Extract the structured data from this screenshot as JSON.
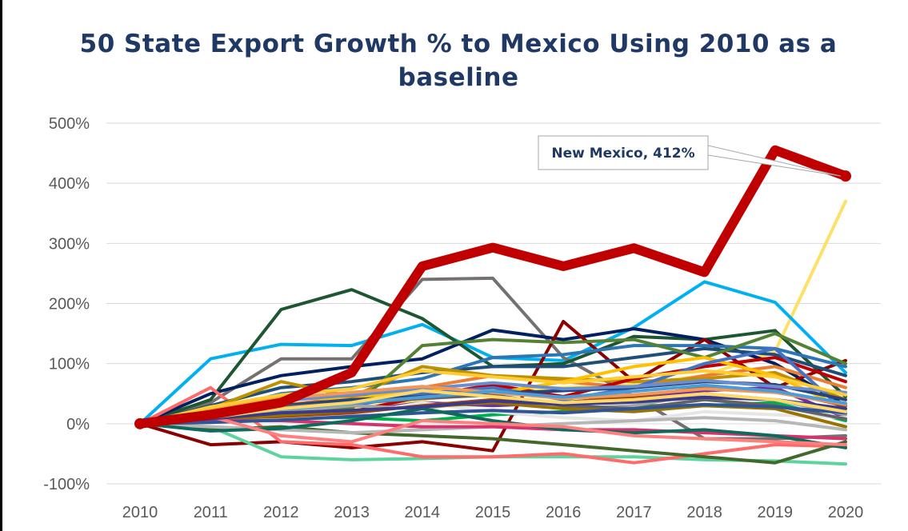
{
  "chart_data": {
    "type": "line",
    "title": "50 State Export Growth % to Mexico Using 2010 as a baseline",
    "xlabel": "",
    "ylabel": "",
    "ylim": [
      -100,
      500
    ],
    "yticks": [
      -100,
      0,
      100,
      200,
      300,
      400,
      500
    ],
    "ytick_labels": [
      "-100%",
      "0%",
      "100%",
      "200%",
      "300%",
      "400%",
      "500%"
    ],
    "x": [
      "2010",
      "2011",
      "2012",
      "2013",
      "2014",
      "2015",
      "2016",
      "2017",
      "2018",
      "2019",
      "2020"
    ],
    "grid": "horizontal",
    "annotation": {
      "text": "New Mexico, 412%",
      "x": "2020",
      "y": 412
    },
    "highlight_series": {
      "name": "New Mexico",
      "color": "#c00000",
      "values": [
        0,
        15,
        35,
        85,
        262,
        293,
        262,
        292,
        252,
        455,
        412
      ]
    },
    "series": [
      {
        "color": "#ffe066",
        "values": [
          0,
          5,
          15,
          25,
          40,
          55,
          60,
          65,
          80,
          120,
          370
        ]
      },
      {
        "color": "#00b0f0",
        "values": [
          0,
          108,
          132,
          130,
          165,
          110,
          105,
          160,
          236,
          202,
          85
        ]
      },
      {
        "color": "#767171",
        "values": [
          0,
          35,
          108,
          108,
          240,
          242,
          110,
          45,
          -25,
          -25,
          -20
        ]
      },
      {
        "color": "#1e5631",
        "values": [
          0,
          40,
          190,
          223,
          175,
          95,
          100,
          145,
          140,
          155,
          45
        ]
      },
      {
        "color": "#002060",
        "values": [
          0,
          50,
          80,
          95,
          108,
          156,
          140,
          158,
          140,
          100,
          30
        ]
      },
      {
        "color": "#8b0000",
        "values": [
          0,
          -35,
          -30,
          -40,
          -30,
          -45,
          170,
          70,
          140,
          60,
          105
        ]
      },
      {
        "color": "#5dd39e",
        "values": [
          0,
          -5,
          -55,
          -60,
          -58,
          -55,
          -55,
          -55,
          -60,
          -62,
          -67
        ]
      },
      {
        "color": "#ff6b6b",
        "values": [
          0,
          60,
          -30,
          -35,
          -55,
          -55,
          -50,
          -65,
          -50,
          -35,
          -38
        ]
      },
      {
        "color": "#1f4e79",
        "values": [
          0,
          30,
          60,
          70,
          85,
          95,
          95,
          110,
          125,
          115,
          80
        ]
      },
      {
        "color": "#2e75b6",
        "values": [
          0,
          20,
          50,
          60,
          75,
          110,
          115,
          130,
          130,
          125,
          95
        ]
      },
      {
        "color": "#ed7d31",
        "values": [
          0,
          15,
          30,
          45,
          60,
          80,
          70,
          60,
          80,
          95,
          60
        ]
      },
      {
        "color": "#bf9000",
        "values": [
          0,
          25,
          70,
          45,
          95,
          80,
          75,
          70,
          75,
          85,
          40
        ]
      },
      {
        "color": "#548235",
        "values": [
          0,
          10,
          20,
          25,
          130,
          140,
          135,
          140,
          110,
          150,
          100
        ]
      },
      {
        "color": "#c00000",
        "values": [
          0,
          5,
          15,
          20,
          45,
          65,
          45,
          75,
          95,
          110,
          70
        ]
      },
      {
        "color": "#ffc000",
        "values": [
          0,
          25,
          45,
          40,
          60,
          50,
          70,
          95,
          110,
          80,
          25
        ]
      },
      {
        "color": "#4472c4",
        "values": [
          0,
          15,
          25,
          30,
          50,
          60,
          40,
          60,
          100,
          125,
          20
        ]
      },
      {
        "color": "#7030a0",
        "values": [
          0,
          10,
          15,
          20,
          35,
          30,
          35,
          45,
          55,
          60,
          10
        ]
      },
      {
        "color": "#00b050",
        "values": [
          0,
          5,
          10,
          10,
          5,
          15,
          20,
          30,
          30,
          35,
          5
        ]
      },
      {
        "color": "#a5a5a5",
        "values": [
          0,
          10,
          20,
          30,
          25,
          40,
          25,
          30,
          50,
          40,
          15
        ]
      },
      {
        "color": "#e7e6e6",
        "values": [
          0,
          5,
          10,
          15,
          35,
          20,
          10,
          5,
          20,
          15,
          10
        ]
      },
      {
        "color": "#9e480e",
        "values": [
          0,
          8,
          12,
          18,
          30,
          40,
          35,
          45,
          60,
          55,
          30
        ]
      },
      {
        "color": "#264478",
        "values": [
          0,
          20,
          30,
          40,
          45,
          50,
          55,
          60,
          70,
          65,
          40
        ]
      },
      {
        "color": "#636363",
        "values": [
          0,
          12,
          28,
          34,
          42,
          48,
          30,
          25,
          40,
          30,
          8
        ]
      },
      {
        "color": "#997300",
        "values": [
          0,
          6,
          14,
          22,
          28,
          35,
          25,
          20,
          30,
          25,
          -5
        ]
      },
      {
        "color": "#43682b",
        "values": [
          0,
          -10,
          -5,
          -15,
          -20,
          -25,
          -35,
          -45,
          -55,
          -65,
          -30
        ]
      },
      {
        "color": "#698ed0",
        "values": [
          0,
          18,
          38,
          48,
          58,
          68,
          58,
          62,
          72,
          62,
          52
        ]
      },
      {
        "color": "#f1975a",
        "values": [
          0,
          22,
          42,
          52,
          62,
          52,
          42,
          48,
          58,
          52,
          32
        ]
      },
      {
        "color": "#b7b7b7",
        "values": [
          0,
          -5,
          -10,
          -15,
          -10,
          -5,
          0,
          5,
          10,
          5,
          -10
        ]
      },
      {
        "color": "#ffcd33",
        "values": [
          0,
          28,
          48,
          58,
          88,
          78,
          68,
          78,
          88,
          78,
          48
        ]
      },
      {
        "color": "#4a9dd9",
        "values": [
          0,
          14,
          24,
          34,
          44,
          54,
          44,
          54,
          64,
          54,
          34
        ]
      },
      {
        "color": "#d6336c",
        "values": [
          0,
          5,
          5,
          0,
          -5,
          -5,
          -10,
          -10,
          -15,
          -20,
          -25
        ]
      },
      {
        "color": "#2f5597",
        "values": [
          0,
          2,
          6,
          12,
          18,
          22,
          18,
          25,
          32,
          28,
          18
        ]
      },
      {
        "color": "#0e6b5c",
        "values": [
          0,
          -12,
          -8,
          5,
          25,
          5,
          -10,
          -15,
          -10,
          -20,
          -40
        ]
      },
      {
        "color": "#ff7f7f",
        "values": [
          0,
          12,
          -20,
          -30,
          5,
          0,
          -5,
          -20,
          -25,
          -30,
          -35
        ]
      },
      {
        "color": "#3a3a8c",
        "values": [
          0,
          8,
          18,
          22,
          28,
          38,
          32,
          36,
          44,
          40,
          25
        ]
      },
      {
        "color": "#ffd966",
        "values": [
          0,
          10,
          25,
          35,
          55,
          45,
          35,
          40,
          50,
          40,
          20
        ]
      }
    ]
  }
}
